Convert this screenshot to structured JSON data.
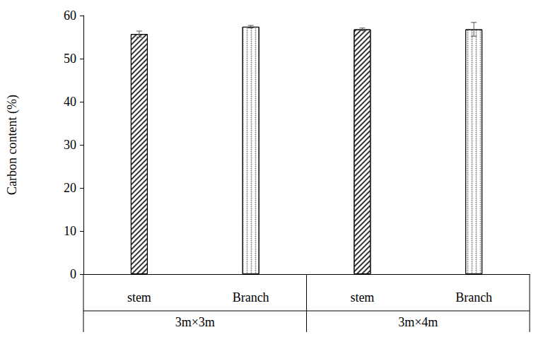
{
  "chart_data": {
    "type": "bar",
    "y_label": "Carbon content (%)",
    "categories": [
      "stem",
      "Branch",
      "stem",
      "Branch"
    ],
    "groups": [
      "3m×3m",
      "3m×3m",
      "3m×4m",
      "3m×4m"
    ],
    "values": [
      55.7,
      57.4,
      56.8,
      56.8
    ],
    "errors": [
      0.7,
      0.3,
      0.3,
      1.6
    ],
    "colors": [
      "#333333",
      "#808080",
      "#333333",
      "#808080"
    ],
    "ylim": [
      0,
      60
    ],
    "yticks": [
      0,
      10,
      20,
      30,
      40,
      50,
      60
    ],
    "grid": false
  }
}
